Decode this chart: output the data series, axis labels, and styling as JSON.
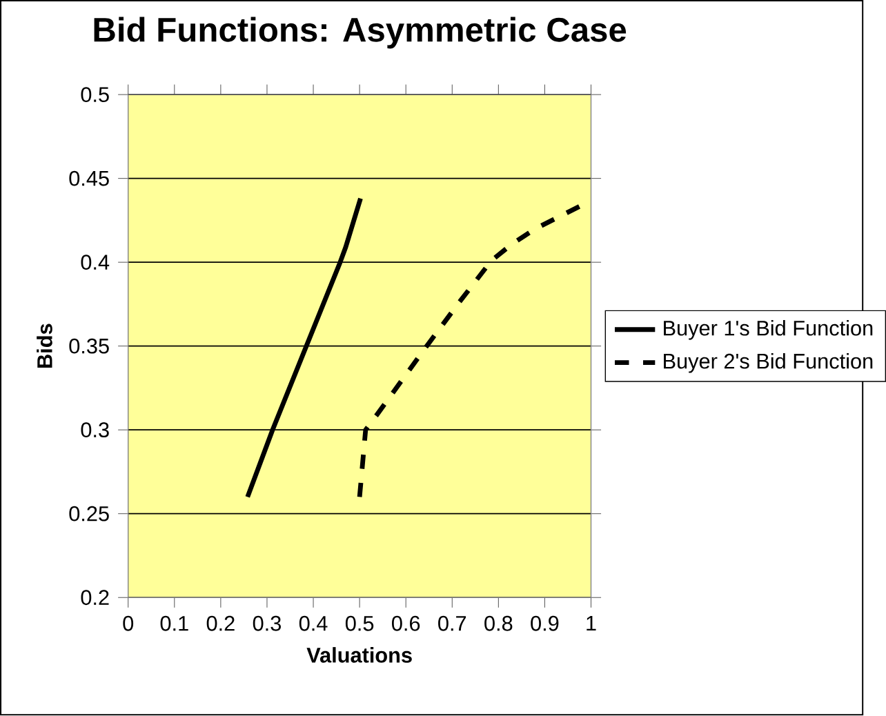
{
  "chart_data": {
    "type": "line",
    "title": "Bid Functions: Asymmetric Case",
    "xlabel": "Valuations",
    "ylabel": "Bids",
    "xlim": [
      0,
      1
    ],
    "ylim": [
      0.2,
      0.5
    ],
    "xticks": [
      0,
      0.1,
      0.2,
      0.3,
      0.4,
      0.5,
      0.6,
      0.7,
      0.8,
      0.9,
      1
    ],
    "yticks": [
      0.2,
      0.25,
      0.3,
      0.35,
      0.4,
      0.45,
      0.5
    ],
    "grid": "y",
    "legend": "right",
    "marker": "none",
    "series": [
      {
        "name": "Buyer 1's Bid Function",
        "color": "#000000",
        "line_style": "solid",
        "x": [
          0.258,
          0.312,
          0.385,
          0.458,
          0.47,
          0.502
        ],
        "values": [
          0.26,
          0.3,
          0.35,
          0.4,
          0.409,
          0.438
        ]
      },
      {
        "name": "Buyer 2's Bid Function",
        "color": "#000000",
        "line_style": "dashed",
        "x": [
          0.5,
          0.513,
          0.54,
          0.645,
          0.715,
          0.785,
          0.83,
          0.88,
          0.98
        ],
        "values": [
          0.26,
          0.3,
          0.31,
          0.35,
          0.376,
          0.401,
          0.411,
          0.42,
          0.434
        ]
      }
    ]
  }
}
